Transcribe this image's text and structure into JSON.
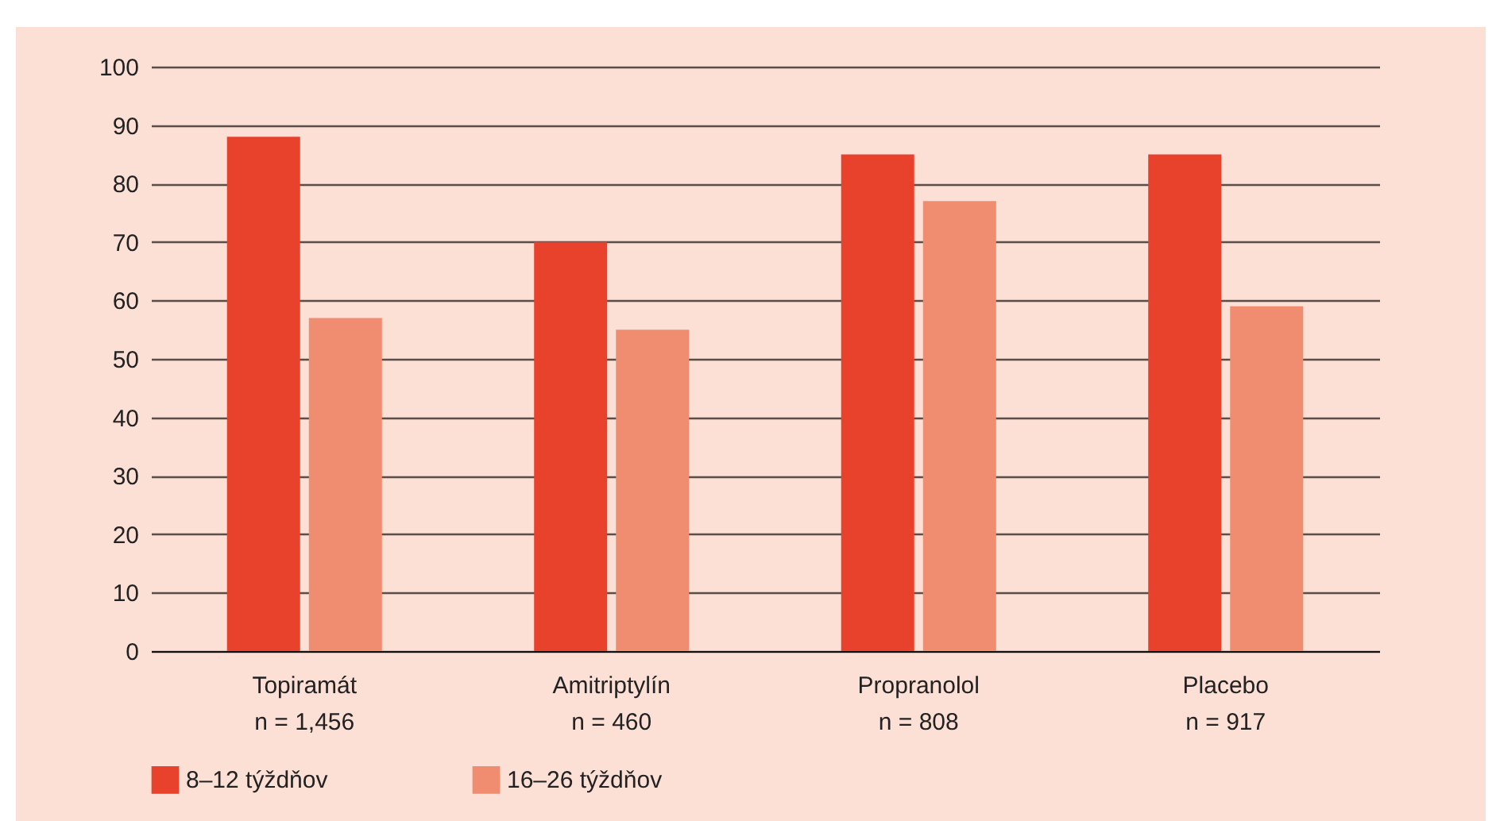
{
  "chart_data": {
    "type": "bar",
    "categories": [
      "Topiramát\nn = 1,456",
      "Amitriptylín\nn = 460",
      "Propranolol\nn = 808",
      "Placebo\nn = 917"
    ],
    "series": [
      {
        "name": "8–12 týždňov",
        "color": "#e8412c",
        "values": [
          88,
          70,
          85,
          85
        ]
      },
      {
        "name": "16–26 týždňov",
        "color": "#f08c70",
        "values": [
          57,
          55,
          77,
          59
        ]
      }
    ],
    "ylim": [
      0,
      100
    ],
    "yticks": [
      0,
      10,
      20,
      30,
      40,
      50,
      60,
      70,
      80,
      90,
      100
    ],
    "grid": "y",
    "legend": "bottom"
  }
}
